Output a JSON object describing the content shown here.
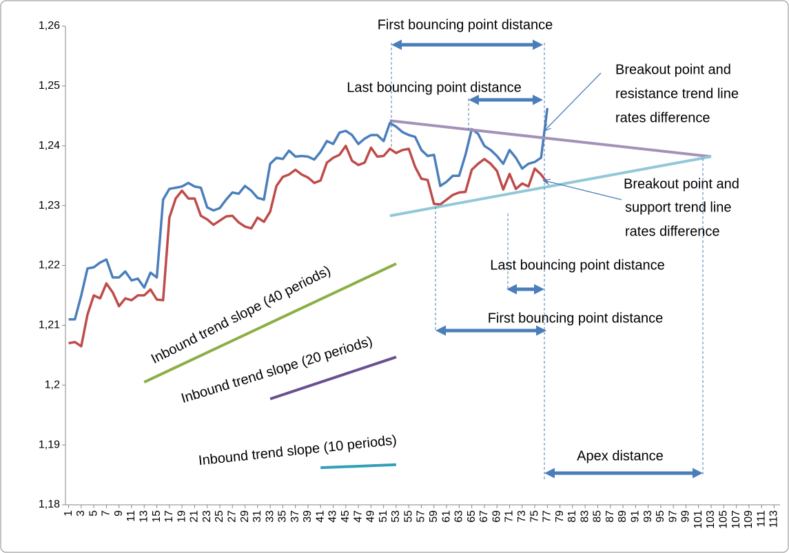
{
  "chart_data": {
    "type": "line",
    "annotations": [
      "First bouncing point distance",
      "Last bouncing point distance",
      "Breakout point and",
      "resistance trend line",
      "rates difference",
      "Breakout point and",
      "support trend line",
      "rates difference",
      "Last bouncing point distance",
      "First bouncing point distance",
      "Apex distance",
      "Inbound trend slope (40 periods)",
      "Inbound trend slope (20 periods)",
      "Inbound trend slope (10 periods)"
    ],
    "x": [
      1,
      2,
      3,
      4,
      5,
      6,
      7,
      8,
      9,
      10,
      11,
      12,
      13,
      14,
      15,
      16,
      17,
      18,
      19,
      20,
      21,
      22,
      23,
      24,
      25,
      26,
      27,
      28,
      29,
      30,
      31,
      32,
      33,
      34,
      35,
      36,
      37,
      38,
      39,
      40,
      41,
      42,
      43,
      44,
      45,
      46,
      47,
      48,
      49,
      50,
      51,
      52,
      53,
      54,
      55,
      56,
      57,
      58,
      59,
      60,
      61,
      62,
      63,
      64,
      65,
      66,
      67,
      68,
      69,
      70,
      71,
      72,
      73,
      74,
      75,
      76,
      77
    ],
    "series": [
      {
        "color": "#4a7ebb",
        "values": [
          1.211,
          1.211,
          1.215,
          1.2195,
          1.2197,
          1.2205,
          1.221,
          1.218,
          1.218,
          1.219,
          1.2175,
          1.2178,
          1.2163,
          1.2188,
          1.218,
          1.231,
          1.2328,
          1.233,
          1.2332,
          1.2338,
          1.2332,
          1.233,
          1.2297,
          1.2292,
          1.2296,
          1.231,
          1.2322,
          1.232,
          1.2333,
          1.2325,
          1.2313,
          1.231,
          1.237,
          1.238,
          1.2378,
          1.2392,
          1.2382,
          1.2383,
          1.2382,
          1.2377,
          1.239,
          1.2408,
          1.2403,
          1.2422,
          1.2425,
          1.2418,
          1.2403,
          1.2412,
          1.2418,
          1.2418,
          1.2408,
          1.2438,
          1.2432,
          1.2423,
          1.2418,
          1.2415,
          1.2393,
          1.2383,
          1.2385,
          1.2333,
          1.234,
          1.235,
          1.235,
          1.2385,
          1.2428,
          1.242,
          1.24,
          1.2393,
          1.2383,
          1.237,
          1.2393,
          1.238,
          1.2362,
          1.237,
          1.2373,
          1.238,
          1.2463
        ]
      },
      {
        "color": "#be4b48",
        "values": [
          1.207,
          1.2072,
          1.2065,
          1.2118,
          1.215,
          1.2145,
          1.217,
          1.2155,
          1.2132,
          1.2145,
          1.2142,
          1.215,
          1.215,
          1.216,
          1.2143,
          1.2142,
          1.228,
          1.2312,
          1.2325,
          1.2312,
          1.2312,
          1.2283,
          1.2277,
          1.2268,
          1.2275,
          1.2282,
          1.2283,
          1.2272,
          1.2265,
          1.2262,
          1.228,
          1.2273,
          1.229,
          1.2333,
          1.2348,
          1.2352,
          1.236,
          1.2352,
          1.2347,
          1.2338,
          1.2342,
          1.2372,
          1.238,
          1.2385,
          1.24,
          1.2375,
          1.2368,
          1.2372,
          1.2397,
          1.2382,
          1.2383,
          1.2395,
          1.2388,
          1.2393,
          1.2395,
          1.2365,
          1.2345,
          1.2343,
          1.2303,
          1.2302,
          1.231,
          1.2318,
          1.2322,
          1.2323,
          1.236,
          1.237,
          1.2378,
          1.237,
          1.2358,
          1.2327,
          1.2353,
          1.2328,
          1.2337,
          1.2332,
          1.2362,
          1.2352,
          1.2338
        ]
      }
    ],
    "trend_lines": [
      {
        "color": "#a491b8",
        "x": [
          52,
          103
        ],
        "values": [
          1.2442,
          1.2382
        ]
      },
      {
        "color": "#92c8d8",
        "x": [
          52,
          103
        ],
        "values": [
          1.2283,
          1.2382
        ]
      },
      {
        "color": "#8cae46",
        "x": [
          13,
          53
        ],
        "values": [
          1.2005,
          1.2203
        ]
      },
      {
        "color": "#6a4f92",
        "x": [
          33,
          53
        ],
        "values": [
          1.1977,
          1.2047
        ]
      },
      {
        "color": "#31a0b8",
        "x": [
          41,
          53
        ],
        "values": [
          1.1862,
          1.1867
        ]
      }
    ],
    "xlim": [
      0.5,
      113.5
    ],
    "xticks": [
      1,
      3,
      5,
      7,
      9,
      11,
      13,
      15,
      17,
      19,
      21,
      23,
      25,
      27,
      29,
      31,
      33,
      35,
      37,
      39,
      41,
      43,
      45,
      47,
      49,
      51,
      53,
      55,
      57,
      59,
      61,
      63,
      65,
      67,
      69,
      71,
      73,
      75,
      77,
      79,
      81,
      83,
      85,
      87,
      89,
      91,
      93,
      95,
      97,
      99,
      101,
      103,
      105,
      107,
      109,
      111,
      113
    ],
    "ylim": [
      1.18,
      1.26
    ],
    "yticks": [
      {
        "value": 1.18,
        "label": "1,18"
      },
      {
        "value": 1.19,
        "label": "1,19"
      },
      {
        "value": 1.2,
        "label": "1,2"
      },
      {
        "value": 1.21,
        "label": "1,21"
      },
      {
        "value": 1.22,
        "label": "1,22"
      },
      {
        "value": 1.23,
        "label": "1,23"
      },
      {
        "value": 1.24,
        "label": "1,24"
      },
      {
        "value": 1.25,
        "label": "1,25"
      },
      {
        "value": 1.26,
        "label": "1,26"
      }
    ],
    "grid": false
  }
}
